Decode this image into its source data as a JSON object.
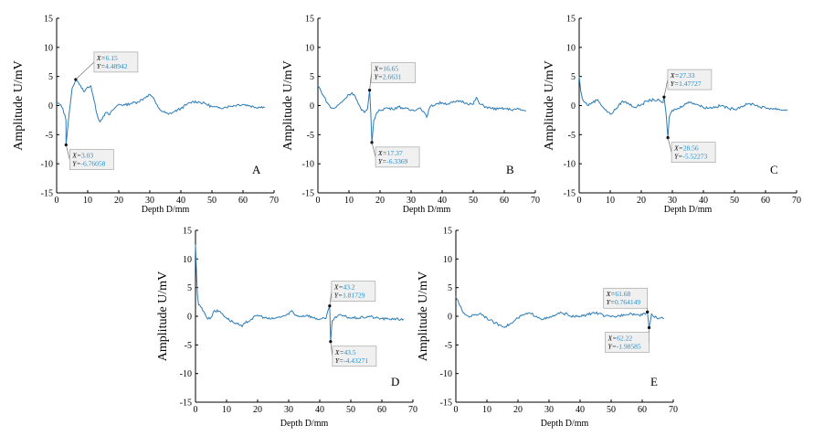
{
  "figure": {
    "style": {
      "line_color": "#2c7bb6",
      "callout_value_color": "#1c8fd0",
      "callout_bg": "#f0f0f0",
      "callout_border": "#999999",
      "axis_color": "#000000"
    }
  },
  "chart_data": [
    {
      "id": "A",
      "type": "line",
      "panel_label": "A",
      "xlabel": "Depth D/mm",
      "ylabel": "Amplitude U/mV",
      "xlim": [
        0,
        70
      ],
      "ylim": [
        -15,
        15
      ],
      "xticks": [
        "0",
        "10",
        "20",
        "30",
        "40",
        "50",
        "60",
        "70"
      ],
      "yticks": [
        "15",
        "10",
        "5",
        "0",
        "-5",
        "-10",
        "-15"
      ],
      "grid": false,
      "x": [
        0,
        1,
        2,
        3,
        3.03,
        4,
        5,
        6.15,
        7,
        8,
        9,
        10,
        11,
        12,
        13,
        14,
        15,
        16,
        17,
        18,
        19,
        20,
        22,
        24,
        26,
        28,
        29,
        30,
        31,
        32,
        33,
        34,
        36,
        38,
        40,
        42,
        44,
        46,
        48,
        50,
        52,
        54,
        56,
        58,
        60,
        62,
        64,
        66,
        67
      ],
      "y": [
        0.5,
        0.2,
        -0.5,
        -2.5,
        -6.76,
        -1.5,
        3.0,
        4.49,
        4.0,
        3.0,
        2.4,
        3.2,
        3.4,
        1.0,
        -1.5,
        -2.8,
        -1.8,
        -1.2,
        -1.6,
        -0.8,
        -0.3,
        0.2,
        0.1,
        0.4,
        0.6,
        1.2,
        1.6,
        1.9,
        1.4,
        0.3,
        -0.5,
        -1.0,
        -1.5,
        -1.0,
        -0.5,
        0.2,
        0.7,
        0.6,
        0.3,
        -0.2,
        -0.4,
        -0.3,
        -0.1,
        0.1,
        0.2,
        0.0,
        -0.3,
        -0.2,
        -0.3
      ],
      "annotations": [
        {
          "x_label": "X=",
          "x_value": "6.15",
          "y_label": "Y=",
          "y_value": "4.48942",
          "x": 6.15,
          "y": 4.49
        },
        {
          "x_label": "X=",
          "x_value": "3.03",
          "y_label": "Y=",
          "y_value": "-6.76058",
          "x": 3.03,
          "y": -6.76
        }
      ]
    },
    {
      "id": "B",
      "type": "line",
      "panel_label": "B",
      "xlabel": "Depth D/mm",
      "ylabel": "Amplitude U/mV",
      "xlim": [
        0,
        70
      ],
      "ylim": [
        -15,
        15
      ],
      "xticks": [
        "0",
        "10",
        "20",
        "30",
        "40",
        "50",
        "60",
        "70"
      ],
      "yticks": [
        "15",
        "10",
        "5",
        "0",
        "-5",
        "-10",
        "-15"
      ],
      "grid": false,
      "x": [
        0,
        1,
        2,
        3,
        4,
        5,
        6,
        8,
        10,
        11,
        12,
        13,
        14,
        15,
        16,
        16.65,
        17,
        17.37,
        18,
        19,
        20,
        22,
        24,
        26,
        28,
        30,
        32,
        33,
        34,
        35,
        36,
        38,
        40,
        42,
        44,
        46,
        48,
        50,
        51,
        52,
        54,
        56,
        58,
        60,
        62,
        64,
        66,
        67
      ],
      "y": [
        3.5,
        2.5,
        1.5,
        0.5,
        -0.3,
        -0.5,
        -0.2,
        0.8,
        1.9,
        2.2,
        1.6,
        0.3,
        -0.8,
        -1.2,
        -0.5,
        2.66,
        -1.0,
        -6.34,
        -2.5,
        -1.2,
        -0.8,
        -0.4,
        -0.6,
        -0.2,
        -0.5,
        -0.8,
        -0.6,
        -0.4,
        -1.0,
        -2.0,
        -0.3,
        0.3,
        0.5,
        0.3,
        0.6,
        0.8,
        0.4,
        0.2,
        1.4,
        0.3,
        -0.2,
        -0.5,
        -0.6,
        -0.5,
        -0.7,
        -0.6,
        -0.8,
        -0.9
      ],
      "annotations": [
        {
          "x_label": "X=",
          "x_value": "16.65",
          "y_label": "Y=",
          "y_value": "2.6631",
          "x": 16.65,
          "y": 2.66
        },
        {
          "x_label": "X=",
          "x_value": "17.37",
          "y_label": "Y=",
          "y_value": "-6.3369",
          "x": 17.37,
          "y": -6.34
        }
      ]
    },
    {
      "id": "C",
      "type": "line",
      "panel_label": "C",
      "xlabel": "Depth D/mm",
      "ylabel": "Amplitude U/mV",
      "xlim": [
        0,
        70
      ],
      "ylim": [
        -15,
        15
      ],
      "xticks": [
        "0",
        "10",
        "20",
        "30",
        "40",
        "50",
        "60",
        "70"
      ],
      "yticks": [
        "15",
        "10",
        "5",
        "0",
        "-5",
        "-10",
        "-15"
      ],
      "grid": false,
      "x": [
        0,
        0.5,
        1,
        2,
        3,
        4,
        6,
        8,
        10,
        12,
        14,
        16,
        18,
        20,
        22,
        24,
        26,
        27,
        27.33,
        28,
        28.56,
        29,
        30,
        32,
        34,
        36,
        38,
        40,
        42,
        44,
        46,
        48,
        50,
        52,
        54,
        56,
        58,
        60,
        62,
        64,
        66,
        67
      ],
      "y": [
        5.0,
        2.5,
        1.2,
        0.5,
        0.0,
        0.5,
        1.0,
        -0.5,
        -1.5,
        -0.5,
        0.8,
        0.3,
        -0.3,
        0.2,
        0.8,
        1.0,
        0.8,
        0.5,
        1.48,
        -1.5,
        -5.52,
        -2.0,
        -0.8,
        -0.5,
        0.3,
        0.6,
        0.2,
        -0.3,
        -0.4,
        -0.2,
        0.0,
        -0.5,
        -0.6,
        -0.2,
        0.2,
        0.3,
        -0.2,
        -0.4,
        -0.5,
        -0.6,
        -0.8,
        -0.7
      ],
      "annotations": [
        {
          "x_label": "X=",
          "x_value": "27.33",
          "y_label": "Y=",
          "y_value": "1.47727",
          "x": 27.33,
          "y": 1.48
        },
        {
          "x_label": "X=",
          "x_value": "28.56",
          "y_label": "Y=",
          "y_value": "-5.52273",
          "x": 28.56,
          "y": -5.52
        }
      ]
    },
    {
      "id": "D",
      "type": "line",
      "panel_label": "D",
      "xlabel": "Depth D/mm",
      "ylabel": "Amplitude U/mV",
      "xlim": [
        0,
        70
      ],
      "ylim": [
        -15,
        15
      ],
      "xticks": [
        "0",
        "10",
        "20",
        "30",
        "40",
        "50",
        "60",
        "70"
      ],
      "yticks": [
        "15",
        "10",
        "5",
        "0",
        "-5",
        "-10",
        "-15"
      ],
      "grid": false,
      "x": [
        0,
        0.3,
        0.6,
        1,
        2,
        3,
        4,
        5,
        6,
        8,
        10,
        12,
        14,
        15,
        16,
        18,
        20,
        22,
        24,
        26,
        28,
        30,
        31,
        32,
        34,
        36,
        38,
        40,
        42,
        43.2,
        43.5,
        44,
        46,
        48,
        50,
        52,
        54,
        56,
        58,
        60,
        62,
        64,
        66,
        67
      ],
      "y": [
        12.5,
        8.0,
        4.0,
        2.0,
        1.5,
        0.5,
        -0.5,
        -0.2,
        1.0,
        0.8,
        -0.3,
        -1.0,
        -1.5,
        -1.8,
        -1.2,
        -0.5,
        0.2,
        -0.2,
        -0.5,
        -0.3,
        0.0,
        0.3,
        1.0,
        0.2,
        0.0,
        0.2,
        -0.3,
        -0.5,
        -0.4,
        1.82,
        -4.43,
        -0.8,
        0.2,
        0.0,
        -0.3,
        -0.3,
        -0.2,
        0.0,
        -0.3,
        -0.4,
        -0.5,
        -0.4,
        -0.6,
        -0.5
      ],
      "annotations": [
        {
          "x_label": "X=",
          "x_value": "43.2",
          "y_label": "Y=",
          "y_value": "1.81729",
          "x": 43.2,
          "y": 1.82
        },
        {
          "x_label": "X=",
          "x_value": "43.5",
          "y_label": "Y=",
          "y_value": "-4.43271",
          "x": 43.5,
          "y": -4.43
        }
      ]
    },
    {
      "id": "E",
      "type": "line",
      "panel_label": "E",
      "xlabel": "Depth D/mm",
      "ylabel": "Amplitude U/mV",
      "xlim": [
        0,
        70
      ],
      "ylim": [
        -15,
        15
      ],
      "xticks": [
        "0",
        "10",
        "20",
        "30",
        "40",
        "50",
        "60",
        "70"
      ],
      "yticks": [
        "15",
        "10",
        "5",
        "0",
        "-5",
        "-10",
        "-15"
      ],
      "grid": false,
      "x": [
        0,
        1,
        2,
        3,
        4,
        6,
        8,
        10,
        12,
        14,
        16,
        18,
        20,
        22,
        24,
        26,
        28,
        30,
        32,
        34,
        36,
        38,
        40,
        42,
        44,
        46,
        48,
        50,
        52,
        54,
        56,
        58,
        60,
        61.68,
        62.22,
        63,
        64,
        66,
        67
      ],
      "y": [
        3.5,
        2.2,
        1.0,
        0.3,
        0.0,
        0.2,
        0.5,
        -0.3,
        -1.0,
        -1.5,
        -1.8,
        -1.2,
        -0.3,
        0.3,
        0.5,
        0.0,
        -0.5,
        -0.3,
        0.2,
        0.6,
        0.3,
        -0.1,
        0.0,
        0.2,
        0.6,
        0.5,
        0.0,
        -0.1,
        0.0,
        0.3,
        0.5,
        0.3,
        0.2,
        0.76,
        -1.99,
        0.4,
        -0.2,
        -0.3,
        -0.4
      ],
      "annotations": [
        {
          "x_label": "X=",
          "x_value": "61.68",
          "y_label": "Y=",
          "y_value": "0.764149",
          "x": 61.68,
          "y": 0.76
        },
        {
          "x_label": "X=",
          "x_value": "62.22",
          "y_label": "Y=",
          "y_value": "-1.98585",
          "x": 62.22,
          "y": -1.99
        }
      ]
    }
  ]
}
